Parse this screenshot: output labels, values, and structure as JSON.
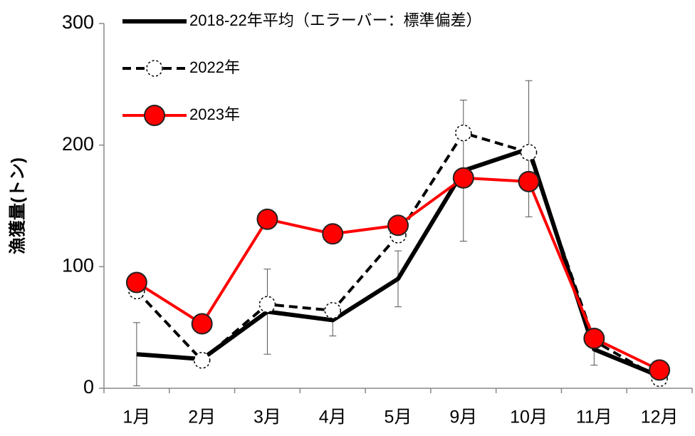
{
  "chart_data": {
    "type": "line",
    "y_label": "漁獲量(トン)",
    "categories": [
      "1月",
      "2月",
      "3月",
      "4月",
      "5月",
      "9月",
      "10月",
      "11月",
      "12月"
    ],
    "ylim": [
      0,
      300
    ],
    "yticks": [
      0,
      100,
      200,
      300
    ],
    "legend": "upper left",
    "series": [
      {
        "name": "2018-22年平均（エラーバー：標準偏差）",
        "color": "#000000",
        "style": "solid",
        "marker": "none",
        "values": [
          28,
          24,
          63,
          56,
          90,
          179,
          197,
          32,
          10
        ],
        "errors": [
          26,
          3,
          35,
          13,
          23,
          58,
          56,
          13,
          5
        ]
      },
      {
        "name": "2022年",
        "color": "#000000",
        "style": "dashed",
        "marker": "open-circle",
        "values": [
          80,
          23,
          69,
          64,
          126,
          210,
          194,
          39,
          8
        ]
      },
      {
        "name": "2023年",
        "color": "#ff0000",
        "style": "solid",
        "marker": "filled-circle",
        "values": [
          87,
          53,
          139,
          127,
          134,
          173,
          170,
          41,
          15
        ]
      }
    ]
  }
}
